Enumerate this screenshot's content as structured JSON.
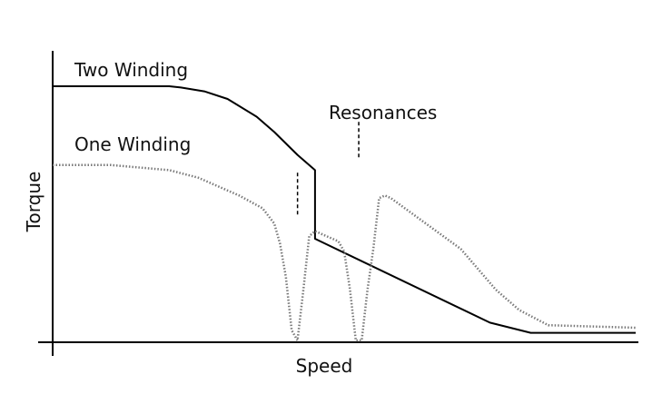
{
  "chart_data": {
    "type": "line",
    "xlabel": "Speed",
    "ylabel": "Torque",
    "annotation": "Resonances",
    "grid": false,
    "legend": "inline labels",
    "axis_color": "#000000",
    "series": [
      {
        "name": "Two Winding",
        "style": "solid",
        "color": "#000000",
        "x": [
          0,
          20,
          22,
          26,
          30,
          35,
          38,
          42,
          45,
          45,
          75,
          82,
          100
        ],
        "y": [
          1.0,
          1.0,
          0.995,
          0.98,
          0.95,
          0.88,
          0.82,
          0.73,
          0.67,
          0.4,
          0.07,
          0.03,
          0.03
        ]
      },
      {
        "name": "One Winding",
        "style": "dotted",
        "color": "#7a7a7a",
        "x": [
          0,
          10,
          20,
          25,
          32,
          36,
          38,
          39,
          40,
          41,
          42,
          43,
          44,
          45,
          47,
          49,
          50,
          51,
          52,
          53,
          54,
          55,
          56,
          57,
          58,
          70,
          76,
          80,
          85,
          100
        ],
        "y": [
          0.69,
          0.69,
          0.67,
          0.64,
          0.57,
          0.52,
          0.46,
          0.38,
          0.25,
          0.04,
          0.0,
          0.2,
          0.41,
          0.43,
          0.41,
          0.39,
          0.35,
          0.2,
          0.0,
          0.0,
          0.2,
          0.36,
          0.56,
          0.57,
          0.56,
          0.36,
          0.2,
          0.12,
          0.06,
          0.05
        ]
      }
    ],
    "resonance_markers": [
      {
        "x": 42,
        "y_top": 0.66,
        "y_bottom": 0.49
      },
      {
        "x": 52.5,
        "y_top": 0.86,
        "y_bottom": 0.72
      }
    ],
    "xlim": [
      0,
      100
    ],
    "ylim": [
      -0.05,
      1.0
    ]
  }
}
